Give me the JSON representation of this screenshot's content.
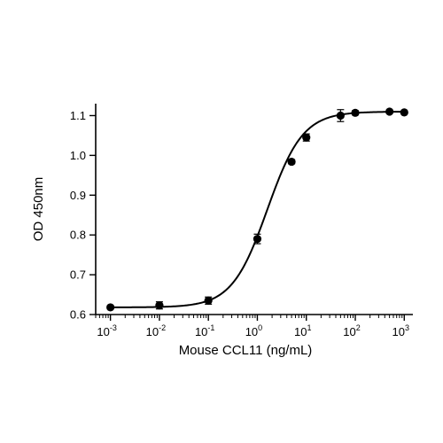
{
  "chart_data": {
    "type": "scatter",
    "xlabel": "Mouse CCL11 (ng/mL)",
    "ylabel": "OD 450nm",
    "x_scale": "log",
    "xlim": [
      0.0005,
      1500
    ],
    "ylim": [
      0.6,
      1.13
    ],
    "x_ticks": [
      {
        "base": "10",
        "exp": "-3",
        "value": 0.001
      },
      {
        "base": "10",
        "exp": "-2",
        "value": 0.01
      },
      {
        "base": "10",
        "exp": "-1",
        "value": 0.1
      },
      {
        "base": "10",
        "exp": "0",
        "value": 1
      },
      {
        "base": "10",
        "exp": "1",
        "value": 10
      },
      {
        "base": "10",
        "exp": "2",
        "value": 100
      },
      {
        "base": "10",
        "exp": "3",
        "value": 1000
      }
    ],
    "y_ticks": [
      "0.6",
      "0.7",
      "0.8",
      "0.9",
      "1.0",
      "1.1"
    ],
    "grid": false,
    "series": [
      {
        "x": [
          0.001,
          0.01,
          0.1,
          1,
          5,
          10,
          50,
          100,
          500,
          1000
        ],
        "y": [
          0.618,
          0.623,
          0.635,
          0.79,
          0.984,
          1.045,
          1.1,
          1.107,
          1.11,
          1.108
        ],
        "error": [
          0.004,
          0.009,
          0.009,
          0.012,
          0.005,
          0.009,
          0.015,
          0.005,
          0.004,
          0.004
        ]
      }
    ],
    "fit": {
      "model": "4PL",
      "bottom": 0.618,
      "top": 1.11,
      "ec50": 1.6,
      "hill": 1.2
    }
  }
}
